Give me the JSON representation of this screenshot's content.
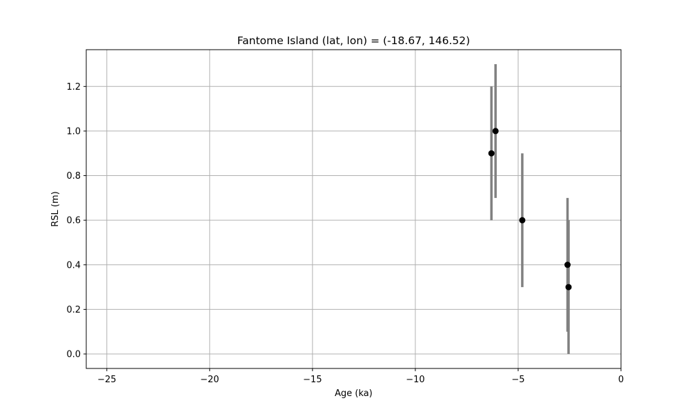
{
  "chart_data": {
    "type": "scatter",
    "title": "Fantome Island (lat, lon) = (-18.67, 146.52)",
    "xlabel": "Age (ka)",
    "ylabel": "RSL (m)",
    "xlim": [
      -26,
      0
    ],
    "ylim": [
      -0.065,
      1.365
    ],
    "xticks": [
      -25,
      -20,
      -15,
      -10,
      -5,
      0
    ],
    "xtick_labels": [
      "−25",
      "−20",
      "−15",
      "−10",
      "−5",
      "0"
    ],
    "yticks": [
      0.0,
      0.2,
      0.4,
      0.6,
      0.8,
      1.0,
      1.2
    ],
    "ytick_labels": [
      "0.0",
      "0.2",
      "0.4",
      "0.6",
      "0.8",
      "1.0",
      "1.2"
    ],
    "grid": true,
    "series": [
      {
        "points": [
          {
            "x": -6.3,
            "y": 0.9,
            "err": 0.3
          },
          {
            "x": -6.1,
            "y": 1.0,
            "err": 0.3
          },
          {
            "x": -4.8,
            "y": 0.6,
            "err": 0.3
          },
          {
            "x": -2.6,
            "y": 0.4,
            "err": 0.3
          },
          {
            "x": -2.55,
            "y": 0.3,
            "err": 0.3
          }
        ]
      }
    ],
    "colors": {
      "marker": "#000000",
      "errorbar": "#808080",
      "grid": "#b0b0b0",
      "frame": "#000000"
    }
  }
}
